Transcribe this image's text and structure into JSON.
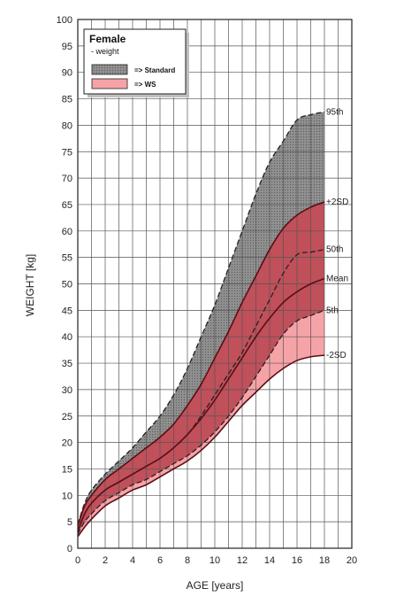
{
  "chart_data": {
    "type": "area",
    "xlabel": "AGE [years]",
    "ylabel": "WEIGHT [kg]",
    "xlim": [
      0,
      20
    ],
    "ylim": [
      0,
      100
    ],
    "x_ticks": [
      0,
      2,
      4,
      6,
      8,
      10,
      12,
      14,
      16,
      18,
      20
    ],
    "y_ticks": [
      0,
      5,
      10,
      15,
      20,
      25,
      30,
      35,
      40,
      45,
      50,
      55,
      60,
      65,
      70,
      75,
      80,
      85,
      90,
      95,
      100
    ],
    "x_minor_step": 1,
    "grid": true,
    "legend": {
      "position": "top-left",
      "title": "Female",
      "subtitle": "- weight",
      "entries": [
        {
          "label": "=> Standard",
          "color": "#8c8c8c",
          "pattern": "dotted"
        },
        {
          "label": "=> WS",
          "color": "#f6a3a8"
        }
      ]
    },
    "x": [
      0,
      0.5,
      1,
      2,
      3,
      4,
      5,
      6,
      7,
      8,
      9,
      10,
      11,
      12,
      13,
      14,
      15,
      16,
      17,
      18
    ],
    "series": [
      {
        "name": "95th",
        "group": "Standard",
        "style": "dashed",
        "values": [
          4.5,
          8.5,
          11,
          14,
          16.5,
          19,
          22,
          25,
          29,
          34,
          40,
          46,
          53,
          60,
          67,
          73,
          77,
          81,
          82,
          82.5
        ]
      },
      {
        "name": "50th",
        "group": "WS",
        "style": "dashed",
        "values": [
          3.3,
          6.5,
          8.5,
          11,
          12.5,
          14,
          15.5,
          17,
          19,
          21.5,
          25,
          29,
          33,
          37,
          42,
          47,
          52,
          55.5,
          56,
          56.5
        ]
      },
      {
        "name": "5th",
        "group": "WS",
        "style": "dashed",
        "values": [
          2.7,
          5,
          6.5,
          9,
          10.5,
          12,
          13,
          14.5,
          16,
          17.5,
          19.5,
          22,
          25,
          28.5,
          32.5,
          36.5,
          40.5,
          43,
          44,
          45
        ]
      },
      {
        "name": "+2SD",
        "group": "WS",
        "style": "solid",
        "values": [
          4.3,
          8,
          10,
          13,
          15,
          17,
          19,
          21,
          23.5,
          27,
          31,
          36,
          41,
          46.5,
          51.5,
          56.5,
          60.5,
          63,
          64.5,
          65.5
        ]
      },
      {
        "name": "Mean",
        "group": "WS",
        "style": "solid",
        "values": [
          3.2,
          6.5,
          8.5,
          11,
          12.5,
          14,
          15.5,
          17,
          19,
          21.5,
          24.5,
          28,
          32,
          36,
          40,
          43.5,
          46.5,
          48.5,
          50,
          51
        ]
      },
      {
        "name": "-2SD",
        "group": "WS",
        "style": "solid",
        "values": [
          2.2,
          4,
          5.5,
          8,
          9.5,
          11,
          12,
          13.5,
          15,
          16.5,
          18.5,
          21,
          24,
          27,
          29.5,
          32,
          34,
          35.5,
          36.2,
          36.5
        ]
      }
    ],
    "colors": {
      "standard_fill": "#8c8c8c",
      "ws_outer_fill": "#c0505a",
      "ws_inner_fill": "#f6a3a8",
      "curve_stroke": "#5a0e14",
      "dashed_stroke": "#222222",
      "grid_stroke": "#555555"
    }
  }
}
